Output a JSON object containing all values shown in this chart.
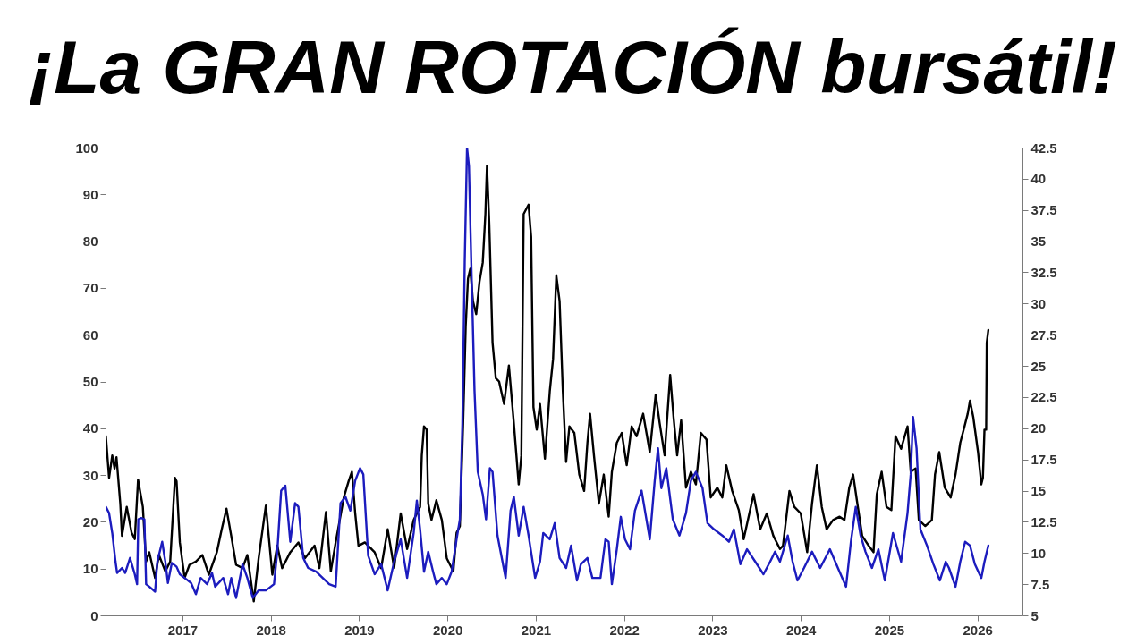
{
  "chart_data": {
    "type": "line",
    "title": "¡La GRAN ROTACIÓN bursátil!",
    "xlim": [
      2016.13,
      2026.51
    ],
    "xticks": [
      2017,
      2018,
      2019,
      2020,
      2021,
      2022,
      2023,
      2024,
      2025,
      2026
    ],
    "ylim": [
      0,
      100
    ],
    "yticks": [
      0,
      10,
      20,
      30,
      40,
      50,
      60,
      70,
      80,
      90,
      100
    ],
    "y2lim": [
      5,
      42.5
    ],
    "y2ticks": [
      5,
      7.5,
      10,
      12.5,
      15,
      17.5,
      20,
      22.5,
      25,
      27.5,
      30,
      32.5,
      35,
      37.5,
      40,
      42.5
    ],
    "grid": false,
    "series": [
      {
        "color": "#000000",
        "x": [
          2016.134,
          2016.152,
          2016.17,
          2016.206,
          2016.232,
          2016.254,
          2016.297,
          2016.316,
          2016.37,
          2016.425,
          2016.461,
          2016.498,
          2016.552,
          2016.589,
          2016.625,
          2016.691,
          2016.734,
          2016.807,
          2016.862,
          2016.916,
          2016.934,
          2016.971,
          2017.025,
          2017.08,
          2017.153,
          2017.226,
          2017.299,
          2017.39,
          2017.444,
          2017.499,
          2017.553,
          2017.608,
          2017.681,
          2017.735,
          2017.808,
          2017.863,
          2017.945,
          2018.018,
          2018.074,
          2018.129,
          2018.221,
          2018.313,
          2018.386,
          2018.496,
          2018.551,
          2018.625,
          2018.68,
          2018.735,
          2018.827,
          2018.882,
          2018.919,
          2018.956,
          2018.993,
          2019.066,
          2019.176,
          2019.25,
          2019.324,
          2019.397,
          2019.471,
          2019.544,
          2019.618,
          2019.691,
          2019.71,
          2019.735,
          2019.765,
          2019.783,
          2019.82,
          2019.875,
          2019.937,
          2019.993,
          2020.03,
          2020.067,
          2020.104,
          2020.141,
          2020.178,
          2020.207,
          2020.233,
          2020.259,
          2020.289,
          2020.326,
          2020.363,
          2020.4,
          2020.43,
          2020.448,
          2020.474,
          2020.511,
          2020.548,
          2020.585,
          2020.641,
          2020.696,
          2020.752,
          2020.807,
          2020.837,
          2020.863,
          2020.919,
          2020.948,
          2020.974,
          2021.011,
          2021.048,
          2021.104,
          2021.159,
          2021.196,
          2021.233,
          2021.27,
          2021.307,
          2021.344,
          2021.381,
          2021.437,
          2021.493,
          2021.548,
          2021.585,
          2021.615,
          2021.659,
          2021.715,
          2021.77,
          2021.826,
          2021.862,
          2021.918,
          2021.974,
          2022.03,
          2022.086,
          2022.142,
          2022.216,
          2022.291,
          2022.358,
          2022.403,
          2022.459,
          2022.522,
          2022.56,
          2022.601,
          2022.646,
          2022.701,
          2022.757,
          2022.813,
          2022.869,
          2022.933,
          2022.981,
          2023.056,
          2023.112,
          2023.157,
          2023.224,
          2023.299,
          2023.354,
          2023.466,
          2023.541,
          2023.616,
          2023.69,
          2023.765,
          2023.799,
          2023.872,
          2023.927,
          2024.0,
          2024.073,
          2024.128,
          2024.183,
          2024.238,
          2024.293,
          2024.366,
          2024.44,
          2024.495,
          2024.549,
          2024.593,
          2024.641,
          2024.696,
          2024.769,
          2024.824,
          2024.861,
          2024.916,
          2024.971,
          2025.026,
          2025.073,
          2025.136,
          2025.209,
          2025.245,
          2025.3,
          2025.337,
          2025.41,
          2025.484,
          2025.52,
          2025.568,
          2025.63,
          2025.697,
          2025.752,
          2025.806,
          2025.854,
          2025.89,
          2025.916,
          2025.953,
          2026.007,
          2026.044,
          2026.062,
          2026.08,
          2026.099,
          2026.106,
          2026.124
        ],
        "values": [
          38.3,
          33.8,
          29.4,
          34.2,
          31.4,
          33.8,
          23.9,
          17.0,
          23.2,
          17.7,
          16.3,
          29.0,
          23.2,
          11.5,
          13.5,
          8.0,
          12.9,
          9.4,
          11.5,
          29.4,
          28.7,
          15.6,
          8.0,
          10.8,
          11.5,
          12.9,
          8.7,
          13.5,
          18.3,
          22.8,
          17.0,
          10.8,
          10.1,
          12.9,
          3.0,
          12.2,
          23.5,
          8.7,
          14.9,
          10.1,
          13.5,
          15.6,
          12.2,
          14.9,
          10.1,
          22.1,
          9.4,
          15.6,
          25.2,
          28.7,
          30.7,
          21.8,
          14.9,
          15.6,
          13.5,
          10.1,
          18.4,
          10.1,
          21.8,
          14.2,
          20.4,
          23.2,
          34.2,
          40.4,
          39.7,
          23.9,
          20.4,
          24.6,
          20.4,
          12.2,
          10.8,
          9.4,
          17.7,
          19.1,
          41.1,
          61.7,
          72.0,
          74.1,
          67.2,
          64.4,
          71.3,
          75.4,
          85.8,
          96.1,
          83.7,
          58.3,
          50.7,
          50.0,
          45.2,
          53.4,
          41.1,
          28.0,
          34.2,
          85.8,
          87.8,
          80.9,
          44.5,
          39.7,
          45.2,
          33.5,
          47.9,
          54.8,
          72.7,
          67.2,
          47.9,
          32.8,
          40.4,
          39.0,
          30.1,
          26.6,
          36.9,
          43.1,
          34.2,
          23.9,
          30.1,
          21.1,
          30.7,
          36.9,
          39.0,
          32.1,
          40.4,
          38.3,
          43.1,
          34.9,
          47.2,
          41.1,
          34.2,
          51.4,
          42.4,
          34.2,
          41.7,
          27.3,
          30.7,
          28.0,
          39.0,
          37.6,
          25.2,
          27.3,
          25.2,
          32.1,
          26.6,
          22.5,
          16.3,
          25.9,
          18.4,
          21.8,
          17.0,
          14.2,
          14.9,
          26.6,
          23.2,
          21.8,
          13.5,
          23.9,
          32.1,
          23.2,
          18.4,
          20.4,
          21.1,
          20.4,
          27.3,
          30.1,
          23.9,
          17.0,
          14.9,
          13.5,
          25.9,
          30.7,
          23.2,
          22.5,
          38.3,
          35.6,
          40.4,
          30.7,
          31.4,
          20.4,
          19.1,
          20.4,
          30.1,
          34.9,
          27.3,
          25.2,
          30.1,
          36.9,
          40.4,
          43.1,
          45.9,
          42.4,
          34.9,
          28.0,
          29.4,
          39.7,
          39.7,
          58.3,
          61.0
        ]
      },
      {
        "color": "#1c1cbe",
        "axis": "y2",
        "x": [
          2016.134,
          2016.17,
          2016.206,
          2016.243,
          2016.261,
          2016.316,
          2016.352,
          2016.407,
          2016.461,
          2016.487,
          2016.501,
          2016.534,
          2016.57,
          2016.589,
          2016.625,
          2016.691,
          2016.716,
          2016.771,
          2016.807,
          2016.836,
          2016.88,
          2016.934,
          2016.971,
          2017.025,
          2017.098,
          2017.153,
          2017.207,
          2017.28,
          2017.335,
          2017.371,
          2017.462,
          2017.517,
          2017.553,
          2017.608,
          2017.681,
          2017.735,
          2017.797,
          2017.863,
          2017.945,
          2018.037,
          2018.074,
          2018.118,
          2018.165,
          2018.221,
          2018.276,
          2018.313,
          2018.368,
          2018.423,
          2018.515,
          2018.588,
          2018.662,
          2018.735,
          2018.79,
          2018.846,
          2018.901,
          2018.956,
          2019.011,
          2019.048,
          2019.103,
          2019.176,
          2019.25,
          2019.324,
          2019.397,
          2019.471,
          2019.544,
          2019.618,
          2019.654,
          2019.691,
          2019.735,
          2019.783,
          2019.838,
          2019.875,
          2019.937,
          2019.993,
          2020.048,
          2020.104,
          2020.141,
          2020.17,
          2020.196,
          2020.222,
          2020.244,
          2020.27,
          2020.307,
          2020.344,
          2020.4,
          2020.437,
          2020.481,
          2020.511,
          2020.567,
          2020.659,
          2020.715,
          2020.752,
          2020.807,
          2020.863,
          2020.919,
          2020.993,
          2021.048,
          2021.085,
          2021.159,
          2021.215,
          2021.27,
          2021.344,
          2021.4,
          2021.467,
          2021.511,
          2021.585,
          2021.641,
          2021.733,
          2021.789,
          2021.826,
          2021.862,
          2021.918,
          2021.963,
          2022.011,
          2022.067,
          2022.123,
          2022.198,
          2022.291,
          2022.347,
          2022.384,
          2022.422,
          2022.478,
          2022.552,
          2022.627,
          2022.701,
          2022.757,
          2022.813,
          2022.888,
          2022.944,
          2023.019,
          2023.112,
          2023.187,
          2023.243,
          2023.317,
          2023.392,
          2023.485,
          2023.578,
          2023.653,
          2023.709,
          2023.765,
          2023.853,
          2023.908,
          2023.963,
          2024.037,
          2024.128,
          2024.22,
          2024.33,
          2024.421,
          2024.513,
          2024.568,
          2024.623,
          2024.678,
          2024.733,
          2024.806,
          2024.879,
          2024.952,
          2025.044,
          2025.136,
          2025.209,
          2025.245,
          2025.271,
          2025.311,
          2025.355,
          2025.429,
          2025.502,
          2025.575,
          2025.641,
          2025.678,
          2025.752,
          2025.806,
          2025.861,
          2025.916,
          2025.971,
          2026.044,
          2026.08,
          2026.124
        ],
        "values": [
          13.7,
          13.2,
          11.6,
          9.3,
          8.4,
          8.8,
          8.4,
          9.6,
          8.3,
          7.5,
          12.7,
          12.8,
          12.7,
          7.5,
          7.3,
          6.9,
          9.3,
          10.9,
          9.3,
          7.6,
          9.2,
          8.9,
          8.3,
          8.0,
          7.6,
          6.7,
          8.0,
          7.5,
          8.4,
          7.3,
          8.0,
          6.7,
          8.0,
          6.4,
          9.1,
          8.0,
          6.4,
          7.0,
          7.0,
          7.5,
          10.1,
          15.0,
          15.4,
          10.9,
          14.0,
          13.7,
          9.6,
          8.8,
          8.5,
          8.0,
          7.5,
          7.3,
          14.0,
          14.5,
          13.4,
          15.8,
          16.8,
          16.3,
          9.8,
          8.3,
          9.1,
          7.0,
          9.3,
          11.1,
          8.0,
          11.6,
          14.2,
          11.9,
          8.5,
          10.1,
          8.5,
          7.5,
          8.0,
          7.5,
          8.5,
          11.1,
          12.7,
          20.4,
          33.3,
          42.5,
          41.0,
          33.3,
          23.0,
          16.5,
          14.7,
          12.7,
          16.8,
          16.5,
          11.4,
          8.0,
          13.4,
          14.5,
          11.4,
          13.7,
          11.4,
          8.0,
          9.3,
          11.6,
          11.1,
          12.4,
          9.6,
          8.8,
          10.6,
          7.8,
          9.1,
          9.6,
          8.0,
          8.0,
          11.1,
          10.9,
          7.5,
          10.3,
          12.9,
          11.1,
          10.3,
          13.4,
          15.0,
          11.1,
          15.8,
          18.4,
          15.2,
          16.8,
          12.7,
          11.4,
          13.2,
          15.8,
          16.5,
          15.2,
          12.4,
          11.9,
          11.4,
          10.9,
          11.9,
          9.1,
          10.3,
          9.3,
          8.3,
          9.3,
          10.1,
          9.3,
          11.4,
          9.3,
          7.8,
          8.8,
          10.1,
          8.8,
          10.3,
          8.8,
          7.3,
          10.9,
          13.7,
          11.4,
          10.1,
          8.8,
          10.3,
          7.8,
          11.6,
          9.3,
          13.2,
          16.3,
          20.9,
          18.4,
          11.9,
          10.6,
          9.1,
          7.8,
          9.3,
          8.8,
          7.3,
          9.3,
          10.9,
          10.6,
          9.1,
          8.0,
          9.3,
          10.6
        ]
      }
    ]
  }
}
